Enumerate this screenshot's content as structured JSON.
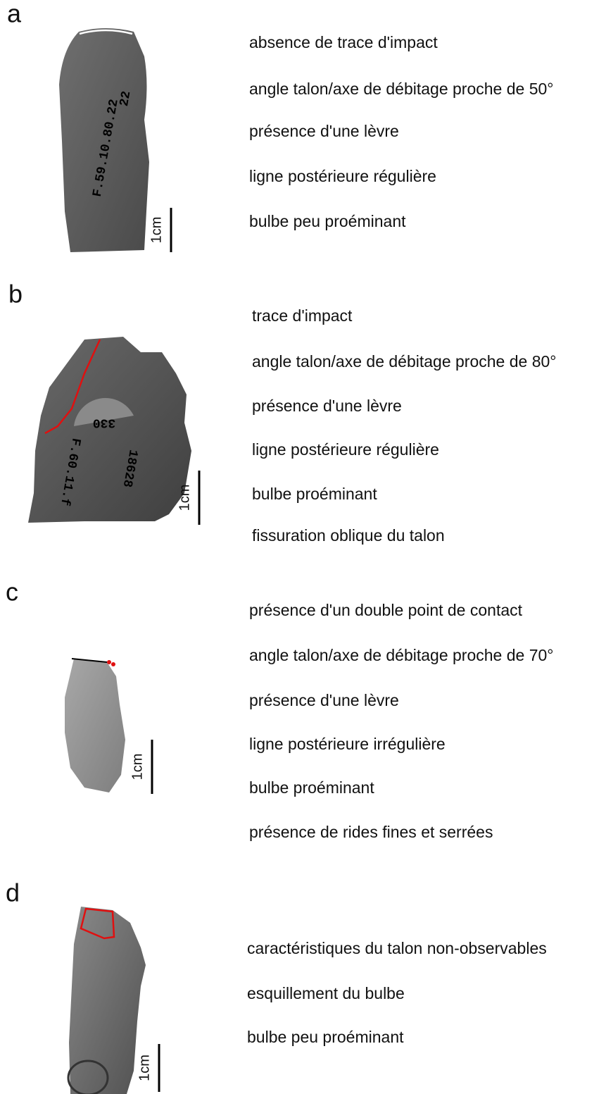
{
  "panels": [
    {
      "label": "a",
      "scale": "1cm",
      "inscriptions": [
        "F.59.10.80.22",
        "22"
      ],
      "features": [
        "absence de trace d'impact",
        "angle talon/axe de débitage proche de 50°",
        "présence d'une lèvre",
        "ligne postérieure régulière",
        "bulbe peu proéminant"
      ]
    },
    {
      "label": "b",
      "scale": "1cm",
      "inscriptions": [
        "330",
        "F.60.11.f",
        "18628"
      ],
      "features": [
        "trace d'impact",
        "angle talon/axe de débitage proche de 80°",
        "présence d'une lèvre",
        "ligne postérieure régulière",
        "bulbe proéminant",
        "fissuration oblique du talon"
      ]
    },
    {
      "label": "c",
      "scale": "1cm",
      "inscriptions": [],
      "features": [
        "présence d'un double point de contact",
        "angle talon/axe de débitage proche de 70°",
        "présence d'une lèvre",
        "ligne postérieure irrégulière",
        "bulbe proéminant",
        "présence de rides fines et serrées"
      ]
    },
    {
      "label": "d",
      "scale": "1cm",
      "inscriptions": [],
      "features": [
        "caractéristiques du talon non-observables",
        "esquillement du bulbe",
        "bulbe peu proéminant"
      ]
    }
  ]
}
